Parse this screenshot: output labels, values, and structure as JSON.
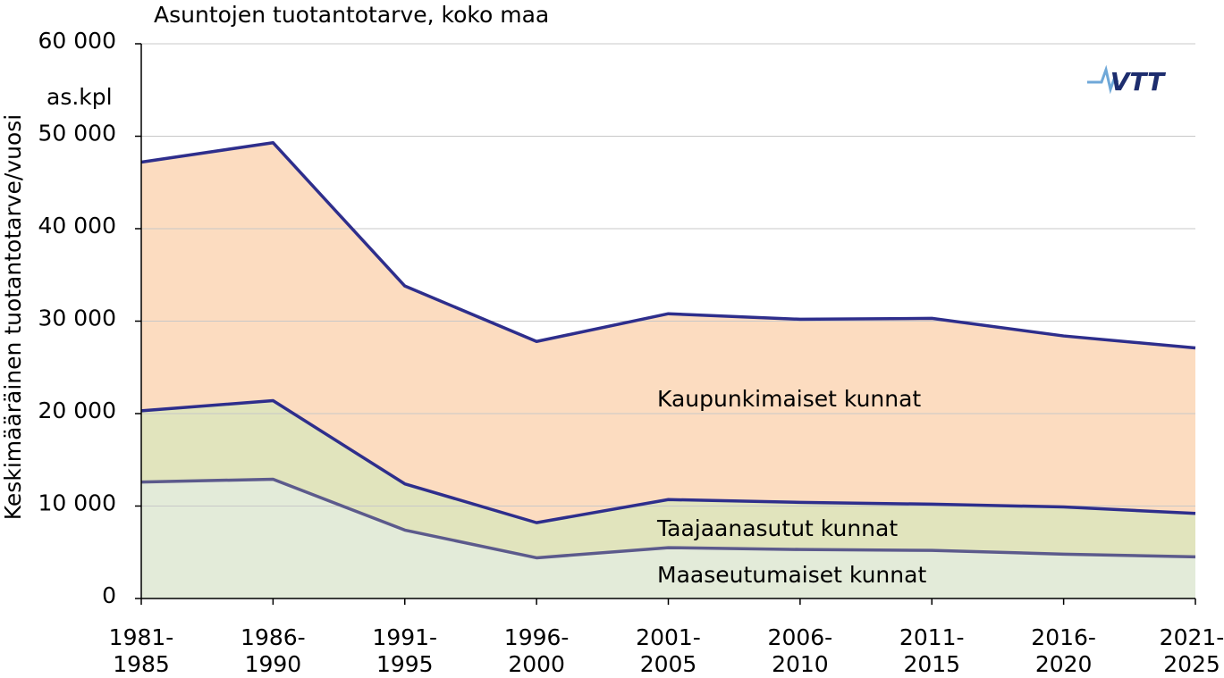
{
  "chart_data": {
    "type": "stacked-area",
    "title": "Asuntojen tuotantotarve, koko maa",
    "y_label": "Keskimääräinen tuotantotarve/vuosi",
    "y_unit": "as.kpl",
    "logo": "VTT",
    "categories": [
      [
        "1981-",
        "1985"
      ],
      [
        "1986-",
        "1990"
      ],
      [
        "1991-",
        "1995"
      ],
      [
        "1996-",
        "2000"
      ],
      [
        "2001-",
        "2005"
      ],
      [
        "2006-",
        "2010"
      ],
      [
        "2011-",
        "2015"
      ],
      [
        "2016-",
        "2020"
      ],
      [
        "2021-",
        "2025"
      ]
    ],
    "series": [
      {
        "name": "Maaseutumaiset kunnat",
        "color": "#e3ebd9",
        "line_color": "#5c5a8c",
        "values": [
          12600,
          12900,
          7400,
          4400,
          5500,
          5300,
          5200,
          4800,
          4500
        ]
      },
      {
        "name": "Taajaanasutut kunnat",
        "color": "#e1e4bd",
        "line_color": "#2e2e8c",
        "values": [
          7700,
          8500,
          5000,
          3800,
          5200,
          5100,
          5000,
          5100,
          4700
        ]
      },
      {
        "name": "Kaupunkimaiset kunnat",
        "color": "#fcdcc0",
        "line_color": "#2e2e8c",
        "values": [
          26900,
          27900,
          21400,
          19600,
          20100,
          19800,
          20100,
          18500,
          17900
        ]
      }
    ],
    "ylim": [
      0,
      60000
    ],
    "yticks": [
      0,
      {
        "value": 10000,
        "label": "10 000"
      },
      {
        "value": 20000,
        "label": "20 000"
      },
      {
        "value": 30000,
        "label": "30 000"
      },
      {
        "value": 40000,
        "label": "40 000"
      },
      {
        "value": 50000,
        "label": "50 000"
      },
      {
        "value": 60000,
        "label": "60 000"
      }
    ],
    "grid": true
  }
}
